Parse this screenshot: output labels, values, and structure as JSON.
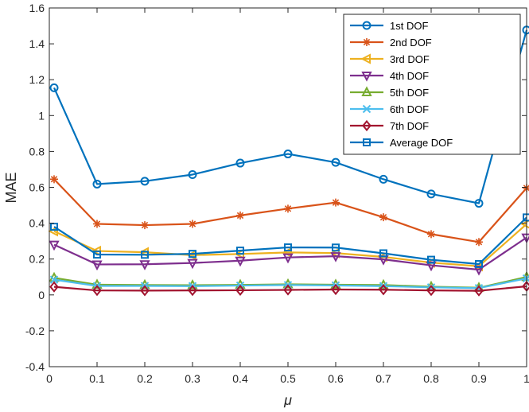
{
  "chart_data": {
    "type": "line",
    "title": "",
    "xlabel": "μ",
    "ylabel": "MAE",
    "xlim": [
      0,
      1
    ],
    "ylim": [
      -0.4,
      1.6
    ],
    "grid": false,
    "legend_position": "top-right",
    "x": [
      0.01,
      0.1,
      0.2,
      0.3,
      0.4,
      0.5,
      0.6,
      0.7,
      0.8,
      0.9,
      1.0
    ],
    "x_ticks": [
      {
        "value": 0,
        "label": "0"
      },
      {
        "value": 0.1,
        "label": "0.1"
      },
      {
        "value": 0.2,
        "label": "0.2"
      },
      {
        "value": 0.3,
        "label": "0.3"
      },
      {
        "value": 0.4,
        "label": "0.4"
      },
      {
        "value": 0.5,
        "label": "0.5"
      },
      {
        "value": 0.6,
        "label": "0.6"
      },
      {
        "value": 0.7,
        "label": "0.7"
      },
      {
        "value": 0.8,
        "label": "0.8"
      },
      {
        "value": 0.9,
        "label": "0.9"
      },
      {
        "value": 1,
        "label": "1"
      }
    ],
    "y_ticks": [
      {
        "value": -0.4,
        "label": "-0.4"
      },
      {
        "value": -0.2,
        "label": "-0.2"
      },
      {
        "value": 0,
        "label": "0"
      },
      {
        "value": 0.2,
        "label": "0.2"
      },
      {
        "value": 0.4,
        "label": "0.4"
      },
      {
        "value": 0.6,
        "label": "0.6"
      },
      {
        "value": 0.8,
        "label": "0.8"
      },
      {
        "value": 1.0,
        "label": "1"
      },
      {
        "value": 1.2,
        "label": "1.2"
      },
      {
        "value": 1.4,
        "label": "1.4"
      },
      {
        "value": 1.6,
        "label": "1.6"
      }
    ],
    "series": [
      {
        "name": "1st DOF",
        "color": "#0072BD",
        "marker": "circle",
        "values": [
          1.155,
          0.618,
          0.634,
          0.671,
          0.735,
          0.786,
          0.739,
          0.645,
          0.563,
          0.511,
          1.477
        ]
      },
      {
        "name": "2nd DOF",
        "color": "#D95319",
        "marker": "star",
        "values": [
          0.645,
          0.396,
          0.389,
          0.396,
          0.443,
          0.481,
          0.515,
          0.433,
          0.339,
          0.295,
          0.596
        ]
      },
      {
        "name": "3rd DOF",
        "color": "#EDB120",
        "marker": "triangle-left",
        "values": [
          0.355,
          0.245,
          0.238,
          0.222,
          0.228,
          0.237,
          0.233,
          0.212,
          0.18,
          0.16,
          0.395
        ]
      },
      {
        "name": "4th DOF",
        "color": "#7E2F8E",
        "marker": "triangle-down",
        "values": [
          0.28,
          0.17,
          0.171,
          0.178,
          0.191,
          0.209,
          0.216,
          0.198,
          0.165,
          0.141,
          0.32
        ]
      },
      {
        "name": "5th DOF",
        "color": "#77AC30",
        "marker": "triangle-up",
        "values": [
          0.095,
          0.057,
          0.055,
          0.054,
          0.056,
          0.059,
          0.057,
          0.055,
          0.046,
          0.04,
          0.1
        ]
      },
      {
        "name": "6th DOF",
        "color": "#4DBEEE",
        "marker": "x",
        "values": [
          0.085,
          0.05,
          0.05,
          0.049,
          0.052,
          0.055,
          0.053,
          0.049,
          0.042,
          0.038,
          0.092
        ]
      },
      {
        "name": "7th DOF",
        "color": "#A2142F",
        "marker": "diamond",
        "values": [
          0.045,
          0.025,
          0.024,
          0.025,
          0.026,
          0.028,
          0.03,
          0.029,
          0.025,
          0.023,
          0.048
        ]
      },
      {
        "name": "Average DOF",
        "color": "#0072BD",
        "marker": "square",
        "values": [
          0.38,
          0.225,
          0.224,
          0.229,
          0.247,
          0.265,
          0.264,
          0.232,
          0.196,
          0.172,
          0.432
        ]
      }
    ]
  }
}
